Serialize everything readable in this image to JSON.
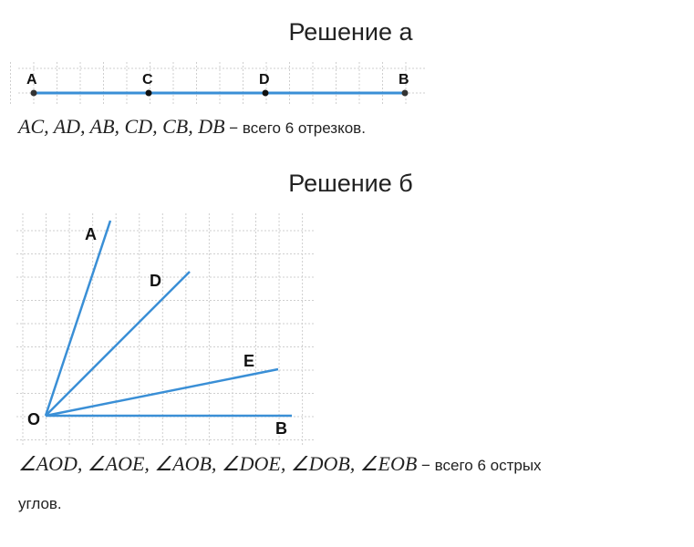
{
  "section_a": {
    "title": "Решение а",
    "points": [
      "A",
      "C",
      "D",
      "B"
    ],
    "answer_math": "AC, AD, AB, CD, CB, DB",
    "answer_text": " − всего 6 отрезков."
  },
  "section_b": {
    "title": "Решение б",
    "vertex": "O",
    "rays": [
      "A",
      "D",
      "E",
      "B"
    ],
    "answer_math": "∠AOD, ∠AOE, ∠AOB, ∠DOE, ∠DOB, ∠EOB",
    "answer_text": " − всего 6 острых",
    "answer_text_2": "углов."
  },
  "colors": {
    "line": "#3a8fd6",
    "grid": "#cfcfcf",
    "point": "#111111"
  }
}
